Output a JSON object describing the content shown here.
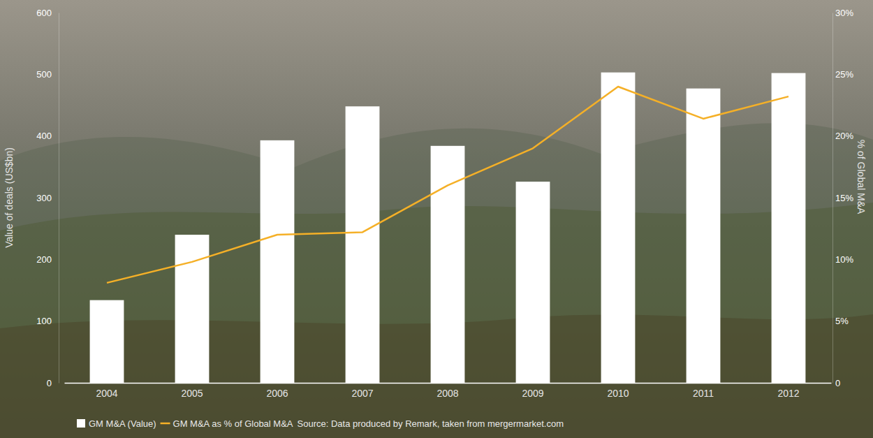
{
  "chart_data": {
    "type": "bar",
    "y_label": "Value of deals (US$bn)",
    "y2_label": "% of Global M&A",
    "source": "Source: Data produced by Remark, taken from mergermarket.com",
    "categories": [
      "2004",
      "2005",
      "2006",
      "2007",
      "2008",
      "2009",
      "2010",
      "2011",
      "2012"
    ],
    "series": [
      {
        "name": "GM M&A (Value)",
        "type": "bar",
        "color": "#ffffff",
        "values": [
          134,
          240,
          393,
          448,
          384,
          326,
          503,
          477,
          502
        ]
      },
      {
        "name": "GM M&A as % of Global M&A",
        "type": "line",
        "color": "#f5b027",
        "axis": "y2",
        "values": [
          8.1,
          9.8,
          12.0,
          12.2,
          16.0,
          19.0,
          24.0,
          21.4,
          23.2
        ]
      }
    ],
    "ylim": [
      0,
      600
    ],
    "yticks": [
      0,
      100,
      200,
      300,
      400,
      500,
      600
    ],
    "y2lim": [
      0,
      30
    ],
    "y2ticks": [
      0,
      {
        "value": 5,
        "label": "5%"
      },
      {
        "value": 10,
        "label": "10%"
      },
      {
        "value": 15,
        "label": "15%"
      },
      {
        "value": 20,
        "label": "20%"
      },
      {
        "value": 25,
        "label": "25%"
      },
      {
        "value": 30,
        "label": "30%"
      }
    ],
    "grid": false,
    "legend": "bottom"
  }
}
